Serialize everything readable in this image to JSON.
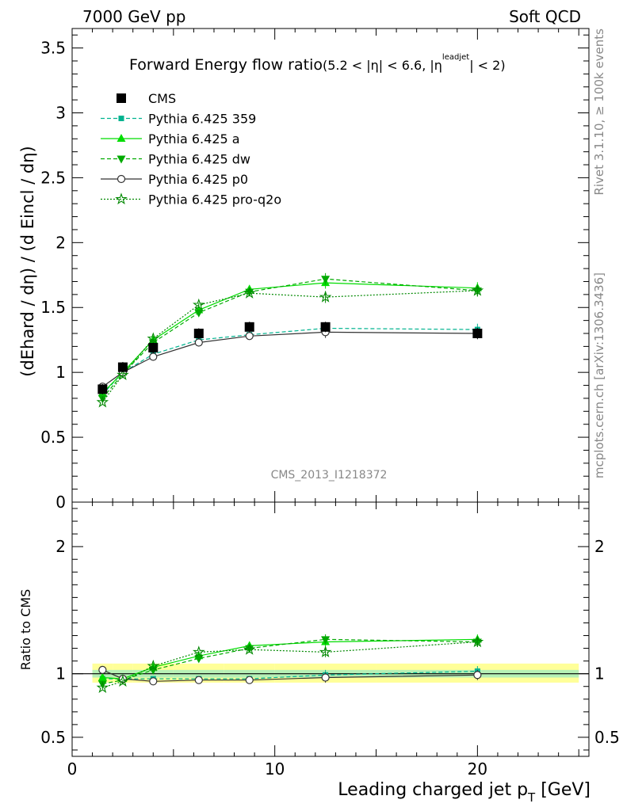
{
  "header": {
    "left": "7000 GeV pp",
    "right": "Soft QCD"
  },
  "side_labels": {
    "rivet": "Rivet 3.1.10, ≥ 100k events",
    "mcplots": "mcplots.cern.ch [arXiv:1306.3436]"
  },
  "watermark": "CMS_2013_I1218372",
  "chart_data": [
    {
      "type": "line",
      "title": "Forward Energy flow ratio",
      "title_cut": "(5.2 < |η| < 6.6, |η",
      "title_cut_sup": "leadjet",
      "title_cut_end": "| < 2)",
      "ylabel": "(dE^hard / dη) / (d Eincl / dη)",
      "ylim": [
        0,
        3.65
      ],
      "xlim": [
        0,
        25.5
      ],
      "yticks": [
        "0",
        "0.5",
        "1",
        "1.5",
        "2",
        "2.5",
        "3",
        "3.5"
      ],
      "grid": false,
      "legend_position": "top-left",
      "x": [
        1.5,
        2.5,
        4.0,
        6.25,
        8.75,
        12.5,
        20.0
      ],
      "cms": {
        "name": "CMS",
        "values": [
          0.87,
          1.04,
          1.19,
          1.3,
          1.35,
          1.35,
          1.3
        ]
      },
      "series": [
        {
          "name": "Pythia 6.425 359",
          "color": "#00b38f",
          "values": [
            0.83,
            1.0,
            1.14,
            1.25,
            1.29,
            1.34,
            1.33
          ]
        },
        {
          "name": "Pythia 6.425 a",
          "color": "#00dd00",
          "values": [
            0.84,
            1.0,
            1.25,
            1.48,
            1.64,
            1.69,
            1.65
          ]
        },
        {
          "name": "Pythia 6.425 dw",
          "color": "#00aa00",
          "values": [
            0.8,
            0.99,
            1.23,
            1.46,
            1.62,
            1.72,
            1.63
          ]
        },
        {
          "name": "Pythia 6.425 p0",
          "color": "#333333",
          "values": [
            0.89,
            1.0,
            1.12,
            1.23,
            1.28,
            1.31,
            1.3
          ]
        },
        {
          "name": "Pythia 6.425 pro-q2o",
          "color": "#008800",
          "values": [
            0.77,
            0.98,
            1.26,
            1.52,
            1.61,
            1.58,
            1.63
          ]
        }
      ]
    },
    {
      "type": "line",
      "title": "",
      "ylabel": "Ratio to CMS",
      "xlabel": "Leading charged jet p",
      "xlabel_sub": "T",
      "xlabel_unit": " [GeV]",
      "ylim": [
        0.35,
        2.35
      ],
      "xlim": [
        0,
        25.5
      ],
      "xticks": [
        "0",
        "10",
        "20"
      ],
      "yticks": [
        "0.5",
        "1",
        "2"
      ],
      "x": [
        1.5,
        2.5,
        4.0,
        6.25,
        8.75,
        12.5,
        20.0
      ],
      "series": [
        {
          "name": "Pythia 6.425 359",
          "values": [
            0.96,
            0.96,
            0.96,
            0.96,
            0.96,
            0.99,
            1.02
          ]
        },
        {
          "name": "Pythia 6.425 a",
          "values": [
            0.97,
            0.96,
            1.05,
            1.14,
            1.22,
            1.25,
            1.27
          ]
        },
        {
          "name": "Pythia 6.425 dw",
          "values": [
            0.92,
            0.95,
            1.03,
            1.12,
            1.2,
            1.27,
            1.25
          ]
        },
        {
          "name": "Pythia 6.425 p0",
          "values": [
            1.03,
            0.96,
            0.94,
            0.95,
            0.95,
            0.97,
            0.99
          ]
        },
        {
          "name": "Pythia 6.425 pro-q2o",
          "values": [
            0.89,
            0.94,
            1.06,
            1.17,
            1.19,
            1.17,
            1.25
          ]
        }
      ]
    }
  ]
}
